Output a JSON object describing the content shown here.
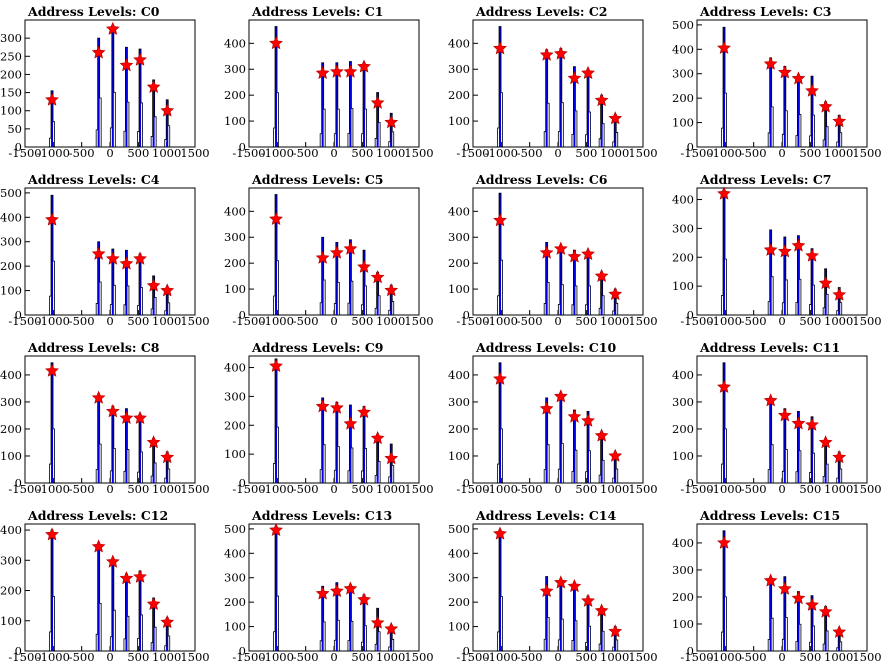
{
  "xticks": [
    -1500,
    -1000,
    -500,
    0,
    500,
    1000,
    1500
  ],
  "xlim": [
    -1500,
    1500
  ],
  "peak_x": [
    -1023,
    -200,
    50,
    290,
    530,
    770,
    1010
  ],
  "chart_data": [
    {
      "type": "bar",
      "title": "Address Levels: C0",
      "ylim": [
        0,
        350
      ],
      "yticks": [
        0,
        50,
        100,
        150,
        200,
        250,
        300
      ],
      "values": [
        130,
        260,
        325,
        225,
        240,
        165,
        100
      ],
      "bars": [
        155,
        300,
        335,
        275,
        270,
        185,
        130
      ]
    },
    {
      "type": "bar",
      "title": "Address Levels: C1",
      "ylim": [
        0,
        490
      ],
      "yticks": [
        0,
        100,
        200,
        300,
        400
      ],
      "values": [
        400,
        285,
        290,
        290,
        310,
        170,
        95
      ],
      "bars": [
        465,
        325,
        325,
        330,
        325,
        210,
        130
      ]
    },
    {
      "type": "bar",
      "title": "Address Levels: C2",
      "ylim": [
        0,
        490
      ],
      "yticks": [
        0,
        100,
        200,
        300,
        400
      ],
      "values": [
        380,
        355,
        360,
        265,
        285,
        180,
        110
      ],
      "bars": [
        465,
        375,
        380,
        310,
        300,
        200,
        125
      ]
    },
    {
      "type": "bar",
      "title": "Address Levels: C3",
      "ylim": [
        0,
        520
      ],
      "yticks": [
        0,
        100,
        200,
        300,
        400,
        500
      ],
      "values": [
        405,
        340,
        305,
        280,
        230,
        165,
        105
      ],
      "bars": [
        490,
        365,
        330,
        295,
        290,
        185,
        130
      ]
    },
    {
      "type": "bar",
      "title": "Address Levels: C4",
      "ylim": [
        0,
        520
      ],
      "yticks": [
        0,
        100,
        200,
        300,
        400,
        500
      ],
      "values": [
        390,
        250,
        230,
        210,
        230,
        120,
        100
      ],
      "bars": [
        490,
        300,
        270,
        265,
        250,
        160,
        110
      ]
    },
    {
      "type": "bar",
      "title": "Address Levels: C5",
      "ylim": [
        0,
        490
      ],
      "yticks": [
        0,
        100,
        200,
        300,
        400
      ],
      "values": [
        370,
        220,
        240,
        255,
        185,
        145,
        95
      ],
      "bars": [
        465,
        300,
        280,
        290,
        250,
        165,
        115
      ]
    },
    {
      "type": "bar",
      "title": "Address Levels: C6",
      "ylim": [
        0,
        490
      ],
      "yticks": [
        0,
        100,
        200,
        300,
        400
      ],
      "values": [
        365,
        240,
        255,
        225,
        235,
        150,
        80
      ],
      "bars": [
        470,
        280,
        260,
        250,
        250,
        165,
        100
      ]
    },
    {
      "type": "bar",
      "title": "Address Levels: C7",
      "ylim": [
        0,
        440
      ],
      "yticks": [
        0,
        100,
        200,
        300,
        400
      ],
      "values": [
        420,
        225,
        220,
        240,
        205,
        110,
        70
      ],
      "bars": [
        430,
        295,
        270,
        275,
        230,
        160,
        95
      ]
    },
    {
      "type": "bar",
      "title": "Address Levels: C8",
      "ylim": [
        0,
        470
      ],
      "yticks": [
        0,
        100,
        200,
        300,
        400
      ],
      "values": [
        415,
        315,
        265,
        240,
        240,
        150,
        95
      ],
      "bars": [
        445,
        320,
        285,
        275,
        255,
        165,
        115
      ]
    },
    {
      "type": "bar",
      "title": "Address Levels: C9",
      "ylim": [
        0,
        440
      ],
      "yticks": [
        0,
        100,
        200,
        300,
        400
      ],
      "values": [
        405,
        265,
        260,
        205,
        245,
        155,
        85
      ],
      "bars": [
        430,
        295,
        280,
        270,
        265,
        165,
        135
      ]
    },
    {
      "type": "bar",
      "title": "Address Levels: C10",
      "ylim": [
        0,
        470
      ],
      "yticks": [
        0,
        100,
        200,
        300,
        400
      ],
      "values": [
        385,
        275,
        320,
        245,
        230,
        175,
        100
      ],
      "bars": [
        445,
        315,
        325,
        270,
        265,
        185,
        115
      ]
    },
    {
      "type": "bar",
      "title": "Address Levels: C11",
      "ylim": [
        0,
        470
      ],
      "yticks": [
        0,
        100,
        200,
        300,
        400
      ],
      "values": [
        355,
        305,
        250,
        220,
        215,
        150,
        95
      ],
      "bars": [
        445,
        315,
        275,
        265,
        245,
        155,
        115
      ]
    },
    {
      "type": "bar",
      "title": "Address Levels: C12",
      "ylim": [
        0,
        420
      ],
      "yticks": [
        0,
        100,
        200,
        300,
        400
      ],
      "values": [
        385,
        345,
        295,
        240,
        245,
        155,
        95
      ],
      "bars": [
        400,
        350,
        300,
        255,
        265,
        175,
        110
      ]
    },
    {
      "type": "bar",
      "title": "Address Levels: C13",
      "ylim": [
        0,
        520
      ],
      "yticks": [
        0,
        100,
        200,
        300,
        400,
        500
      ],
      "values": [
        495,
        235,
        245,
        255,
        210,
        115,
        90
      ],
      "bars": [
        500,
        265,
        280,
        270,
        230,
        175,
        105
      ]
    },
    {
      "type": "bar",
      "title": "Address Levels: C14",
      "ylim": [
        0,
        520
      ],
      "yticks": [
        0,
        100,
        200,
        300,
        400,
        500
      ],
      "values": [
        480,
        245,
        280,
        265,
        205,
        165,
        80
      ],
      "bars": [
        495,
        305,
        290,
        275,
        225,
        180,
        100
      ]
    },
    {
      "type": "bar",
      "title": "Address Levels: C15",
      "ylim": [
        0,
        470
      ],
      "yticks": [
        0,
        100,
        200,
        300,
        400
      ],
      "values": [
        400,
        260,
        230,
        195,
        170,
        145,
        70
      ],
      "bars": [
        445,
        270,
        275,
        220,
        205,
        165,
        75
      ]
    }
  ]
}
